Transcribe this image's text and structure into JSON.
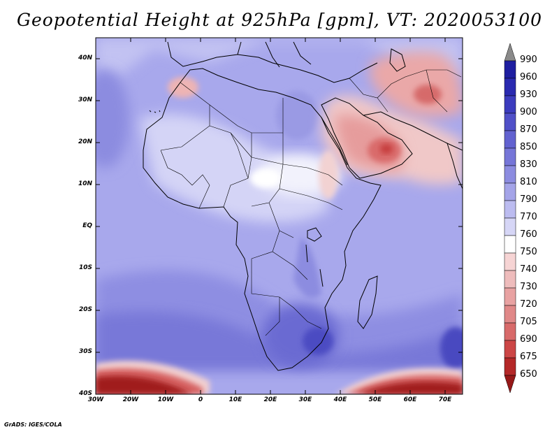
{
  "title": "Geopotential Height at 925hPa [gpm], VT: 2020053100",
  "credit": "GrADS: IGES/COLA",
  "lat_labels": [
    "40N",
    "30N",
    "20N",
    "10N",
    "EQ",
    "10S",
    "20S",
    "30S",
    "40S"
  ],
  "lon_labels": [
    "30W",
    "20W",
    "10W",
    "0",
    "10E",
    "20E",
    "30E",
    "40E",
    "50E",
    "60E",
    "70E"
  ],
  "colorbar": {
    "labels": [
      "990",
      "960",
      "930",
      "900",
      "870",
      "850",
      "830",
      "810",
      "790",
      "770",
      "760",
      "750",
      "740",
      "730",
      "720",
      "705",
      "690",
      "675",
      "650"
    ],
    "colors": [
      "#8a8a8a",
      "#1e1ea0",
      "#2a2ab0",
      "#3c3cbe",
      "#5050c8",
      "#6262d0",
      "#7676d8",
      "#8c8ce0",
      "#a4a4e8",
      "#bcbcf0",
      "#d6d6f6",
      "#ffffff",
      "#f6d4d4",
      "#eebcbc",
      "#e8a2a2",
      "#e08888",
      "#d86a6a",
      "#cc4646",
      "#b42828",
      "#961818"
    ]
  }
}
